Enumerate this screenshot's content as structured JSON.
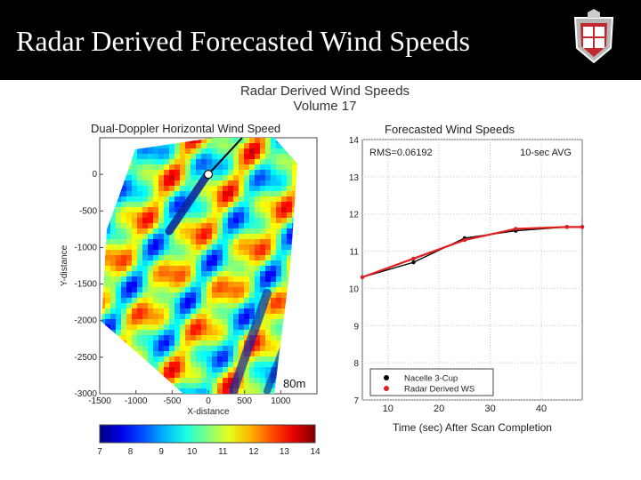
{
  "slide": {
    "title": "Radar Derived Forecasted Wind Speeds",
    "header_color": "#000000",
    "logo": "texas-tech-shield-logo"
  },
  "figure": {
    "title_line1": "Radar Derived Wind Speeds",
    "title_line2": "Volume 17"
  },
  "chart_data": [
    {
      "type": "heatmap",
      "title": "Dual-Doppler Horizontal Wind Speed",
      "xlabel": "X-distance",
      "ylabel": "Y-distance",
      "xlim": [
        -1500,
        1500
      ],
      "ylim": [
        -3000,
        500
      ],
      "x_ticks": [
        "-1500",
        "-1000",
        "-500",
        "0",
        "500",
        "1000"
      ],
      "y_ticks": [
        "0",
        "-500",
        "-1000",
        "-1500",
        "-2000",
        "-2500",
        "-3000"
      ],
      "annotation": "80m",
      "colorbar": {
        "min": 7,
        "max": 14,
        "ticks": [
          "7",
          "8",
          "9",
          "10",
          "11",
          "12",
          "13",
          "14"
        ],
        "colormap": "jet"
      },
      "marker_point": [
        0,
        0
      ]
    },
    {
      "type": "line",
      "title": "Forecasted Wind Speeds",
      "xlabel": "Time (sec) After Scan Completion",
      "ylabel": "",
      "xlim": [
        5,
        48
      ],
      "ylim": [
        7,
        14
      ],
      "x_ticks": [
        "10",
        "20",
        "30",
        "40"
      ],
      "y_ticks": [
        "7",
        "8",
        "9",
        "10",
        "11",
        "12",
        "13",
        "14"
      ],
      "grid": true,
      "annotations": [
        "RMS=0.06192",
        "10-sec AVG"
      ],
      "legend_position": "bottom-left",
      "series": [
        {
          "name": "Nacelle 3-Cup",
          "color": "#000000",
          "x": [
            5,
            15,
            25,
            35,
            45,
            48
          ],
          "y": [
            10.3,
            10.7,
            11.35,
            11.55,
            11.65,
            11.65
          ]
        },
        {
          "name": "Radar Derived WS",
          "color": "#e02020",
          "x": [
            5,
            15,
            25,
            35,
            45,
            48
          ],
          "y": [
            10.3,
            10.8,
            11.3,
            11.6,
            11.65,
            11.65
          ]
        }
      ]
    }
  ]
}
